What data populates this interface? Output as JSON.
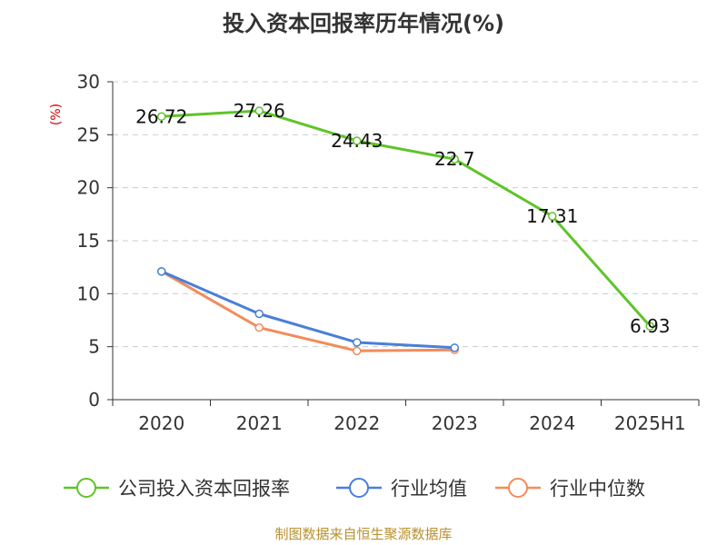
{
  "chart_data": {
    "type": "line",
    "title": "投入资本回报率历年情况(%)",
    "ylabel": "(%)",
    "xlabel": "",
    "categories": [
      "2020",
      "2021",
      "2022",
      "2023",
      "2024",
      "2025H1"
    ],
    "ylim": [
      0,
      30
    ],
    "yticks": [
      0,
      5,
      10,
      15,
      20,
      25,
      30
    ],
    "grid": true,
    "legend_position": "bottom",
    "series": [
      {
        "name": "公司投入资本回报率",
        "color": "#5fc42a",
        "values": [
          26.72,
          27.26,
          24.43,
          22.7,
          17.31,
          6.93
        ],
        "labels": [
          "26.72",
          "27.26",
          "24.43",
          "22.7",
          "17.31",
          "6.93"
        ]
      },
      {
        "name": "行业均值",
        "color": "#4a7fd8",
        "values": [
          12.1,
          8.1,
          5.4,
          4.9,
          null,
          null
        ]
      },
      {
        "name": "行业中位数",
        "color": "#f28c5a",
        "values": [
          12.1,
          6.8,
          4.6,
          4.7,
          null,
          null
        ]
      }
    ],
    "source": "制图数据来自恒生聚源数据库"
  }
}
